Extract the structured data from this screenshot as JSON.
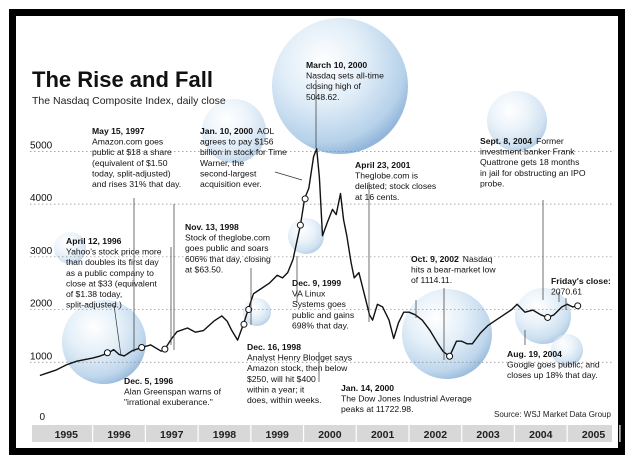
{
  "chart_data": {
    "type": "line",
    "title": "The Rise and Fall",
    "subtitle": "The Nasdaq Composite Index, daily close",
    "source": "Source: WSJ Market Data Group",
    "ylim": [
      0,
      5500
    ],
    "xlim": [
      1994.85,
      2005.85
    ],
    "yticks": [
      0,
      1000,
      2000,
      3000,
      4000,
      5000
    ],
    "ytick_labels": [
      "0",
      "1000",
      "2000",
      "3000",
      "4000",
      "5000"
    ],
    "years": [
      "1995",
      "1996",
      "1997",
      "1998",
      "1999",
      "2000",
      "2001",
      "2002",
      "2003",
      "2004",
      "2005"
    ],
    "grid": "dotted horizontal",
    "series": [
      {
        "x": [
          1995.0,
          1995.15,
          1995.3,
          1995.5,
          1995.7,
          1995.9,
          1996.0,
          1996.15,
          1996.3,
          1996.4,
          1996.5,
          1996.6,
          1996.75,
          1996.93,
          1997.1,
          1997.3,
          1997.37,
          1997.5,
          1997.6,
          1997.8,
          1997.95,
          1998.1,
          1998.3,
          1998.45,
          1998.55,
          1998.63,
          1998.75,
          1998.86,
          1998.95,
          1999.05,
          1999.2,
          1999.35,
          1999.5,
          1999.6,
          1999.7,
          1999.8,
          1999.94,
          2000.02,
          2000.1,
          2000.19,
          2000.25,
          2000.3,
          2000.36,
          2000.45,
          2000.55,
          2000.62,
          2000.7,
          2000.76,
          2000.82,
          2000.9,
          2000.96,
          2001.05,
          2001.15,
          2001.25,
          2001.31,
          2001.4,
          2001.5,
          2001.62,
          2001.71,
          2001.8,
          2001.9,
          2002.0,
          2002.12,
          2002.25,
          2002.4,
          2002.55,
          2002.65,
          2002.77,
          2002.9,
          2003.0,
          2003.1,
          2003.2,
          2003.35,
          2003.5,
          2003.65,
          2003.8,
          2003.95,
          2004.05,
          2004.2,
          2004.35,
          2004.5,
          2004.63,
          2004.75,
          2004.9,
          2005.0,
          2005.1,
          2005.2
        ],
        "y": [
          750,
          800,
          850,
          950,
          1020,
          1060,
          1080,
          1120,
          1180,
          1240,
          1150,
          1120,
          1220,
          1280,
          1330,
          1210,
          1250,
          1450,
          1580,
          1650,
          1570,
          1600,
          1780,
          1880,
          1780,
          1620,
          1420,
          1720,
          2000,
          2300,
          2400,
          2500,
          2650,
          2600,
          2700,
          2950,
          3600,
          4100,
          4300,
          4900,
          5048,
          4500,
          3400,
          3650,
          3900,
          3800,
          4200,
          3700,
          3400,
          2900,
          2600,
          2700,
          2300,
          1900,
          1800,
          2100,
          2050,
          1800,
          1450,
          1750,
          1950,
          1950,
          1900,
          1800,
          1600,
          1350,
          1200,
          1114,
          1400,
          1400,
          1350,
          1350,
          1550,
          1700,
          1800,
          1900,
          2000,
          2100,
          1950,
          1990,
          1900,
          1850,
          1900,
          2050,
          2100,
          2050,
          2070.61
        ]
      }
    ],
    "annotations": [
      {
        "date": "May 15, 1997",
        "text": [
          "Amazon.com goes",
          "public at $18 a share",
          "(equivalent of $1.50",
          "today, split-adjusted)",
          "and rises 31% that day."
        ]
      },
      {
        "date": "Jan. 10, 2000",
        "text": [
          "AOL",
          "agrees to pay $156",
          "billion in stock for Time",
          "Warner, the",
          "second-largest",
          "acquisition ever."
        ]
      },
      {
        "date": "March 10, 2000",
        "text": [
          "Nasdaq sets all-time",
          "closing high of",
          "5048.62."
        ]
      },
      {
        "date": "April 23, 2001",
        "text": [
          "Theglobe.com is",
          "delisted; stock closes",
          "at 16 cents."
        ]
      },
      {
        "date": "Sept. 8, 2004",
        "text": [
          "Former",
          "investment banker Frank",
          "Quattrone gets 18 months",
          "in jail for obstructing an IPO",
          "probe."
        ]
      },
      {
        "date": "April 12, 1996",
        "text": [
          "Yahoo's stock price more",
          "than doubles its first day",
          "as a public company to",
          "close at $33 (equivalent",
          "of $1.38 today,",
          "split-adjusted.)"
        ]
      },
      {
        "date": "Nov. 13, 1998",
        "text": [
          "Stock of theglobe.com",
          "goes public and soars",
          "606% that day, closing",
          "at $63.50."
        ]
      },
      {
        "date": "Dec. 9, 1999",
        "text": [
          "VA Linux",
          "Systems  goes",
          "public and gains",
          "698% that day."
        ]
      },
      {
        "date": "Oct. 9, 2002",
        "text": [
          "Nasdaq",
          "hits a bear-market low",
          "of 1114.11."
        ]
      },
      {
        "date": "Friday's close:",
        "text": [
          "2070.61"
        ]
      },
      {
        "date": "Dec. 16, 1998",
        "text": [
          "Analyst Henry Blodget says",
          "Amazon stock, then below",
          "$250, will hit $400",
          "within a year; it",
          "does, within weeks."
        ]
      },
      {
        "date": "Dec. 5, 1996",
        "text": [
          "Alan Greenspan warns of",
          "\"irrational exuberance.\""
        ]
      },
      {
        "date": "Jan. 14, 2000",
        "text": [
          "The Dow Jones Industrial Average",
          "peaks at 11722.98."
        ]
      },
      {
        "date": "Aug. 19, 2004",
        "text": [
          "Google goes public; and",
          "closes up 18% that day."
        ]
      }
    ]
  }
}
